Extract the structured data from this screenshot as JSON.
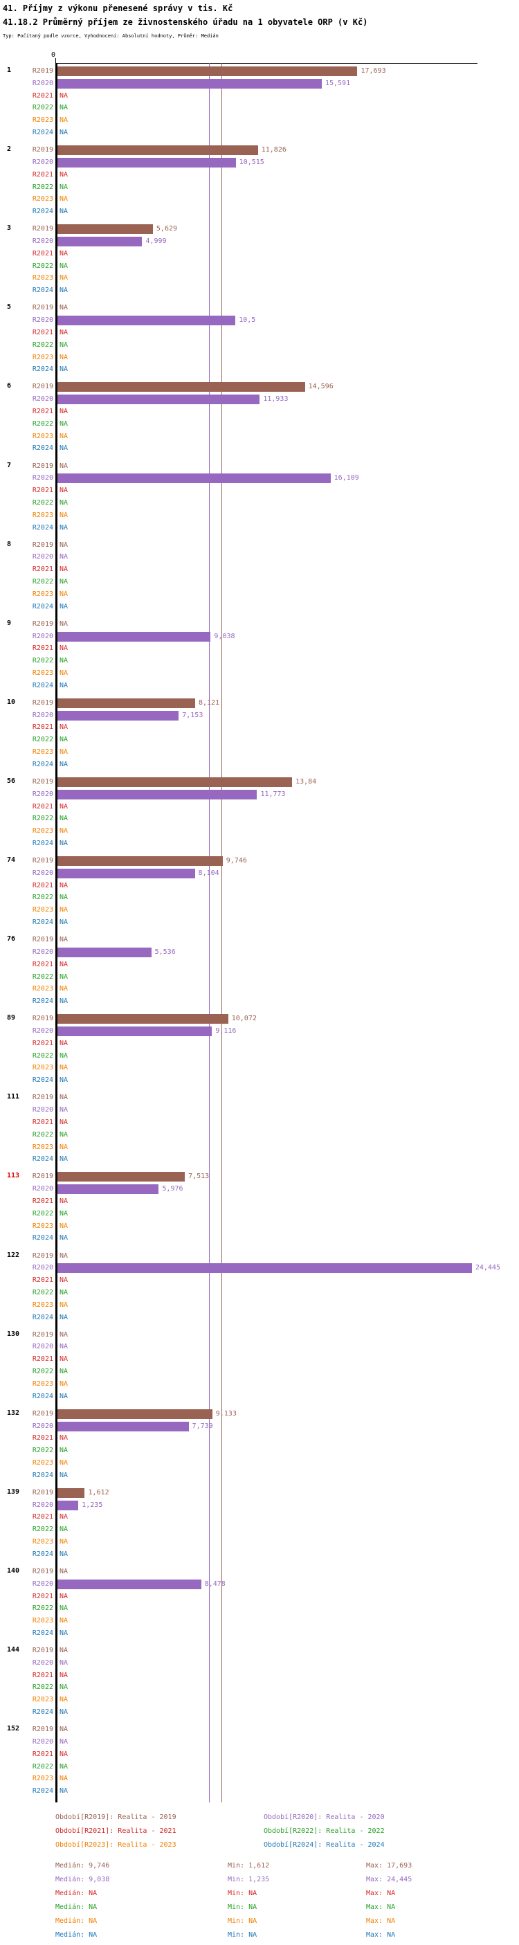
{
  "title": "41. Příjmy z výkonu přenesené správy v tis. Kč",
  "subtitle": "41.18.2 Průměrný příjem ze živnostenského úřadu na 1 obyvatele ORP (v Kč)",
  "meta": "Typ: Počítaný podle vzorce, Vyhodnocení: Absolutní hodnoty, Průměr: Medián",
  "axis_zero_label": "0",
  "na_label": "NA",
  "highlight_color": "#e00000",
  "stat_labels": {
    "median": "Medián",
    "min": "Min",
    "max": "Max"
  },
  "chart_data": {
    "type": "bar",
    "orientation": "horizontal",
    "value_unit": "Kč",
    "x_axis": {
      "min": 0,
      "zero_label": "0",
      "max_value_shown": 24445
    },
    "years": [
      "R2019",
      "R2020",
      "R2021",
      "R2022",
      "R2023",
      "R2024"
    ],
    "series": [
      {
        "year": "R2019",
        "color": "#9a6253",
        "legend": "Období[R2019]: Realita - 2019",
        "median": "9,746",
        "min": "1,612",
        "max": "17,693",
        "median_value": 9746
      },
      {
        "year": "R2020",
        "color": "#9668c0",
        "legend": "Období[R2020]: Realita - 2020",
        "median": "9,038",
        "min": "1,235",
        "max": "24,445",
        "median_value": 9038
      },
      {
        "year": "R2021",
        "color": "#d42828",
        "legend": "Období[R2021]: Realita - 2021",
        "median": "NA",
        "min": "NA",
        "max": "NA",
        "median_value": null
      },
      {
        "year": "R2022",
        "color": "#28a028",
        "legend": "Období[R2022]: Realita - 2022",
        "median": "NA",
        "min": "NA",
        "max": "NA",
        "median_value": null
      },
      {
        "year": "R2023",
        "color": "#f08000",
        "legend": "Období[R2023]: Realita - 2023",
        "median": "NA",
        "min": "NA",
        "max": "NA",
        "median_value": null
      },
      {
        "year": "R2024",
        "color": "#1f77b4",
        "legend": "Období[R2024]: Realita - 2024",
        "median": "NA",
        "min": "NA",
        "max": "NA",
        "median_value": null
      }
    ],
    "groups": [
      {
        "id": "1",
        "highlight": false,
        "bars": {
          "R2019": {
            "value": 17693,
            "label": "17,693"
          },
          "R2020": {
            "value": 15591,
            "label": "15,591"
          }
        }
      },
      {
        "id": "2",
        "highlight": false,
        "bars": {
          "R2019": {
            "value": 11826,
            "label": "11,826"
          },
          "R2020": {
            "value": 10515,
            "label": "10,515"
          }
        }
      },
      {
        "id": "3",
        "highlight": false,
        "bars": {
          "R2019": {
            "value": 5629,
            "label": "5,629"
          },
          "R2020": {
            "value": 4999,
            "label": "4,999"
          }
        }
      },
      {
        "id": "5",
        "highlight": false,
        "bars": {
          "R2020": {
            "value": 10500,
            "label": "10,5"
          }
        }
      },
      {
        "id": "6",
        "highlight": false,
        "bars": {
          "R2019": {
            "value": 14596,
            "label": "14,596"
          },
          "R2020": {
            "value": 11933,
            "label": "11,933"
          }
        }
      },
      {
        "id": "7",
        "highlight": false,
        "bars": {
          "R2020": {
            "value": 16109,
            "label": "16,109"
          }
        }
      },
      {
        "id": "8",
        "highlight": false,
        "bars": {}
      },
      {
        "id": "9",
        "highlight": false,
        "bars": {
          "R2020": {
            "value": 9038,
            "label": "9,038"
          }
        }
      },
      {
        "id": "10",
        "highlight": false,
        "bars": {
          "R2019": {
            "value": 8121,
            "label": "8,121"
          },
          "R2020": {
            "value": 7153,
            "label": "7,153"
          }
        }
      },
      {
        "id": "56",
        "highlight": false,
        "bars": {
          "R2019": {
            "value": 13840,
            "label": "13,84"
          },
          "R2020": {
            "value": 11773,
            "label": "11,773"
          }
        }
      },
      {
        "id": "74",
        "highlight": false,
        "bars": {
          "R2019": {
            "value": 9746,
            "label": "9,746"
          },
          "R2020": {
            "value": 8104,
            "label": "8,104"
          }
        }
      },
      {
        "id": "76",
        "highlight": false,
        "bars": {
          "R2020": {
            "value": 5536,
            "label": "5,536"
          }
        }
      },
      {
        "id": "89",
        "highlight": false,
        "bars": {
          "R2019": {
            "value": 10072,
            "label": "10,072"
          },
          "R2020": {
            "value": 9116,
            "label": "9,116"
          }
        }
      },
      {
        "id": "111",
        "highlight": false,
        "bars": {}
      },
      {
        "id": "113",
        "highlight": true,
        "bars": {
          "R2019": {
            "value": 7513,
            "label": "7,513"
          },
          "R2020": {
            "value": 5976,
            "label": "5,976"
          }
        }
      },
      {
        "id": "122",
        "highlight": false,
        "bars": {
          "R2020": {
            "value": 24445,
            "label": "24,445"
          }
        }
      },
      {
        "id": "130",
        "highlight": false,
        "bars": {}
      },
      {
        "id": "132",
        "highlight": false,
        "bars": {
          "R2019": {
            "value": 9133,
            "label": "9,133"
          },
          "R2020": {
            "value": 7739,
            "label": "7,739"
          }
        }
      },
      {
        "id": "139",
        "highlight": false,
        "bars": {
          "R2019": {
            "value": 1612,
            "label": "1,612"
          },
          "R2020": {
            "value": 1235,
            "label": "1,235"
          }
        }
      },
      {
        "id": "140",
        "highlight": false,
        "bars": {
          "R2020": {
            "value": 8478,
            "label": "8,478"
          }
        }
      },
      {
        "id": "144",
        "highlight": false,
        "bars": {}
      },
      {
        "id": "152",
        "highlight": false,
        "bars": {}
      }
    ]
  }
}
